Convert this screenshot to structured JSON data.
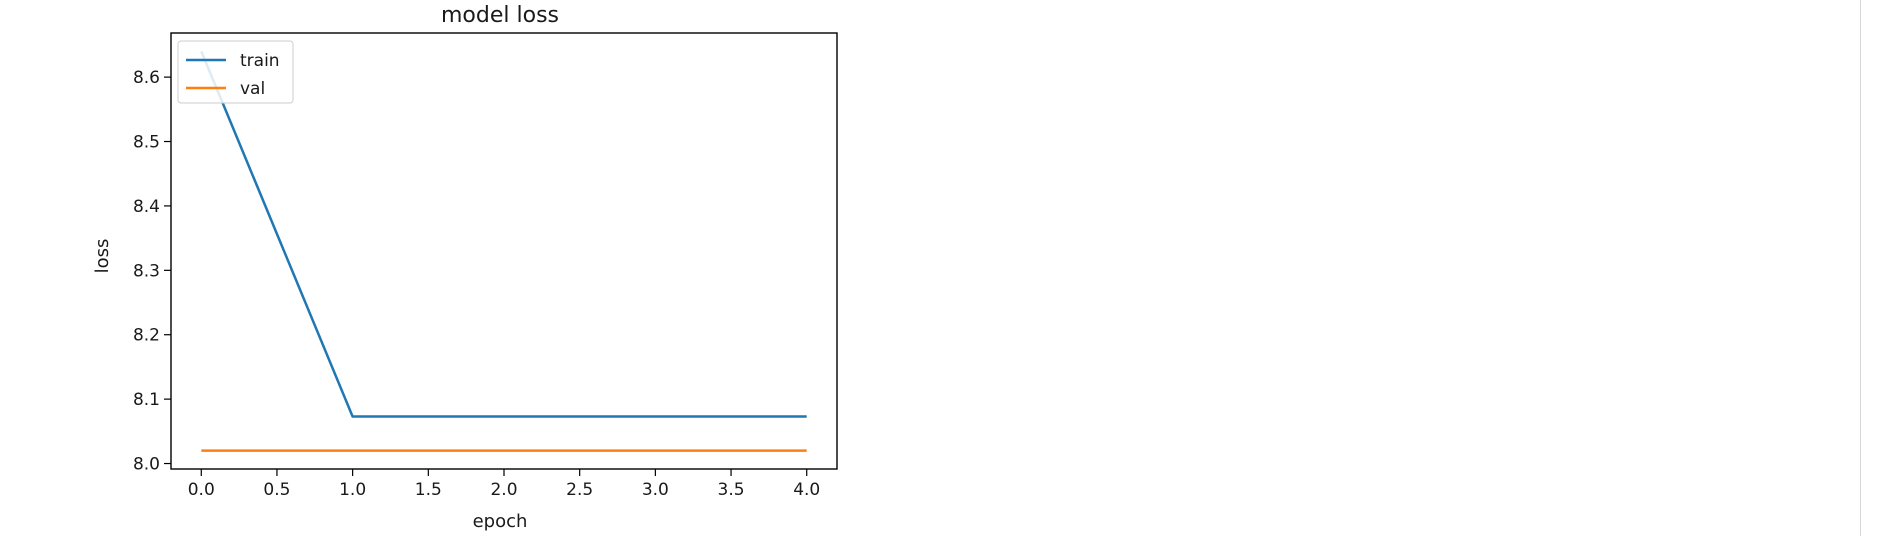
{
  "chart_data": {
    "type": "line",
    "title": "model loss",
    "xlabel": "epoch",
    "ylabel": "loss",
    "x": [
      0,
      1,
      2,
      3,
      4
    ],
    "series": [
      {
        "name": "train",
        "color": "#1f77b4",
        "values": [
          8.64,
          8.073,
          8.073,
          8.073,
          8.073
        ]
      },
      {
        "name": "val",
        "color": "#ff7f0e",
        "values": [
          8.02,
          8.02,
          8.02,
          8.02,
          8.02
        ]
      }
    ],
    "xlim": [
      -0.2,
      4.2
    ],
    "ylim": [
      7.9915,
      8.6685
    ],
    "xticks": [
      0.0,
      0.5,
      1.0,
      1.5,
      2.0,
      2.5,
      3.0,
      3.5,
      4.0
    ],
    "xtick_labels": [
      "0.0",
      "0.5",
      "1.0",
      "1.5",
      "2.0",
      "2.5",
      "3.0",
      "3.5",
      "4.0"
    ],
    "yticks": [
      8.0,
      8.1,
      8.2,
      8.3,
      8.4,
      8.5,
      8.6
    ],
    "ytick_labels": [
      "8.0",
      "8.1",
      "8.2",
      "8.3",
      "8.4",
      "8.5",
      "8.6"
    ],
    "legend": {
      "position": "top-left"
    },
    "grid": false
  }
}
